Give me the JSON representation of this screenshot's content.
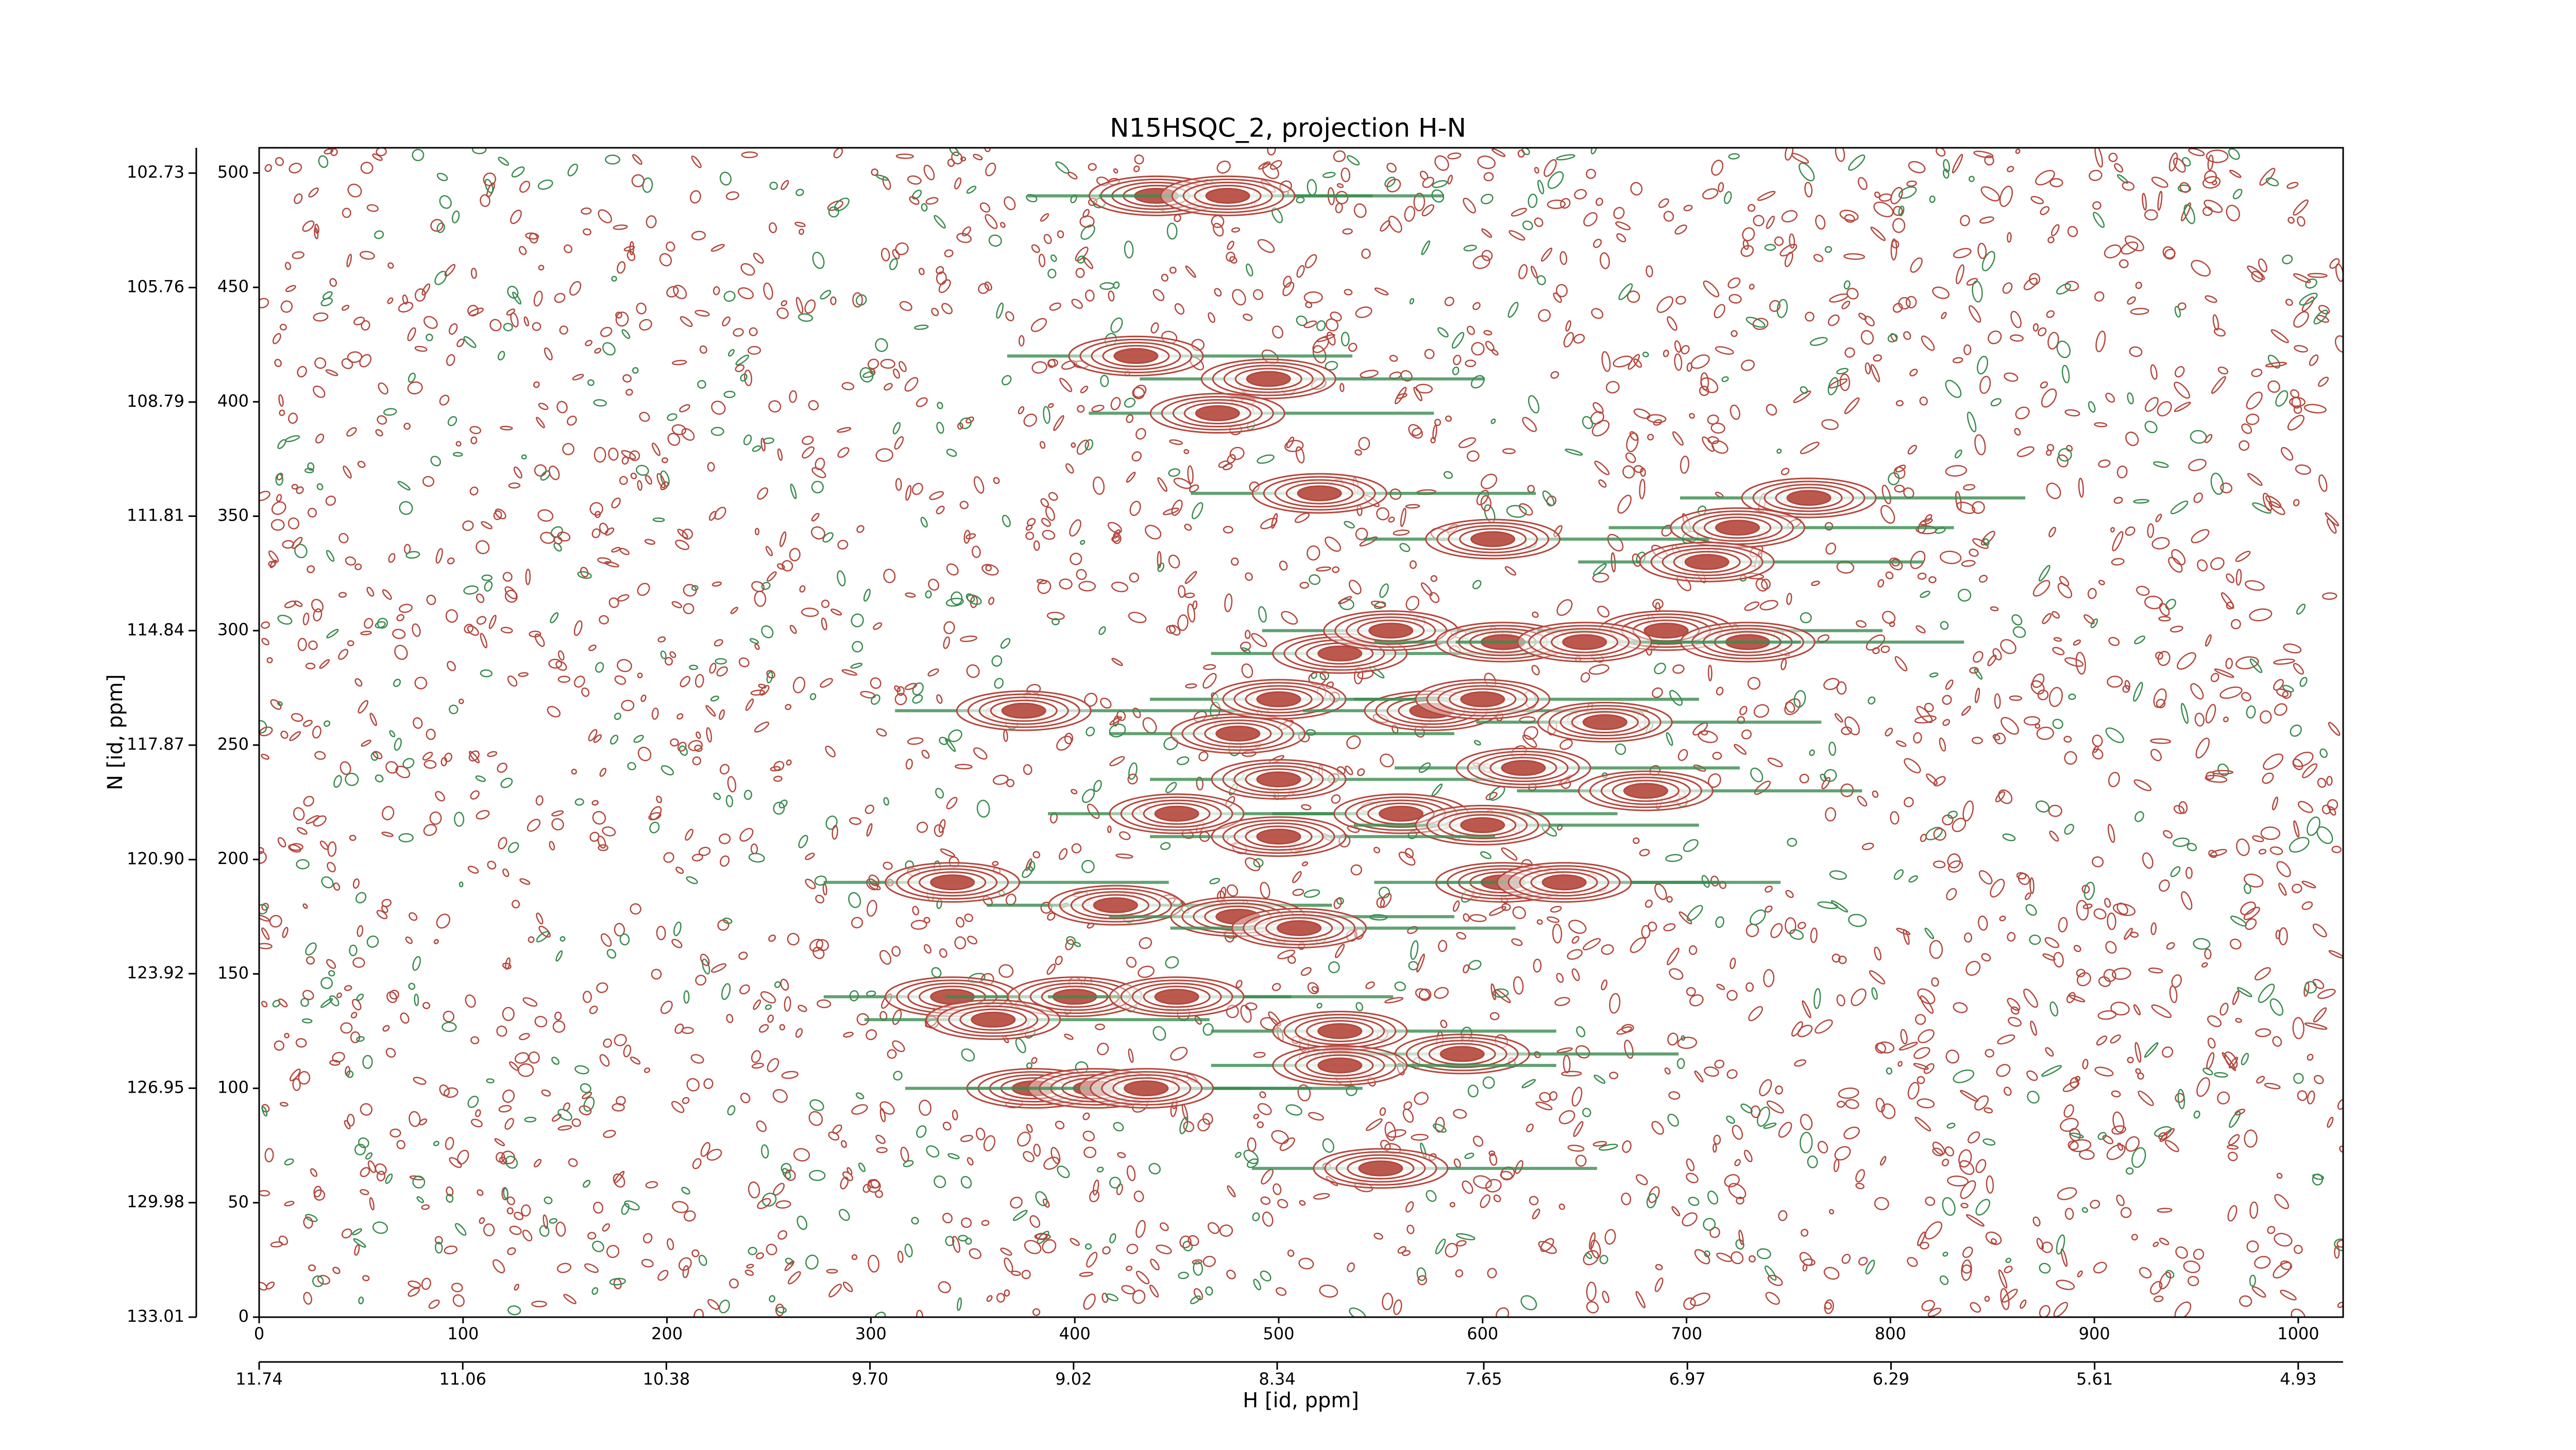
{
  "chart_data": {
    "type": "contour",
    "title": "N15HSQC_2, projection H-N",
    "x_label": "H [id, ppm]",
    "y_label": "N [id, ppm]",
    "xlim": [
      0,
      1022
    ],
    "ylim": [
      0,
      511
    ],
    "xticks": [
      0,
      100,
      200,
      300,
      400,
      500,
      600,
      700,
      800,
      900,
      1000
    ],
    "yticks": [
      0,
      50,
      100,
      150,
      200,
      250,
      300,
      350,
      400,
      450,
      500
    ],
    "x2lim": [
      11.74,
      4.78
    ],
    "x2ticks": [
      11.74,
      11.06,
      10.38,
      {
        "value": 9.7,
        "label": "9.70"
      },
      9.02,
      8.34,
      7.65,
      6.97,
      6.29,
      5.61,
      4.93
    ],
    "y2lim": [
      133.01,
      102.06
    ],
    "y2ticks": [
      133.01,
      129.98,
      126.95,
      123.92,
      {
        "value": 120.9,
        "label": "120.90"
      },
      117.87,
      114.84,
      111.81,
      108.79,
      105.76,
      102.73
    ],
    "contour_colors": [
      "#b5473c",
      "#3a8c4f"
    ],
    "peaks": {
      "x": [
        440,
        475,
        430,
        495,
        470,
        520,
        760,
        725,
        605,
        710,
        530,
        555,
        610,
        690,
        730,
        650,
        375,
        480,
        500,
        575,
        600,
        660,
        500,
        620,
        680,
        450,
        560,
        600,
        500,
        610,
        640,
        340,
        420,
        480,
        510,
        340,
        400,
        450,
        360,
        530,
        590,
        380,
        410,
        435,
        530,
        550
      ],
      "y": [
        490,
        490,
        420,
        410,
        395,
        360,
        358,
        345,
        340,
        330,
        290,
        300,
        295,
        300,
        295,
        295,
        265,
        255,
        270,
        265,
        270,
        260,
        235,
        240,
        230,
        220,
        220,
        215,
        210,
        190,
        190,
        190,
        180,
        175,
        170,
        140,
        140,
        140,
        130,
        125,
        115,
        100,
        100,
        100,
        110,
        65
      ]
    }
  }
}
